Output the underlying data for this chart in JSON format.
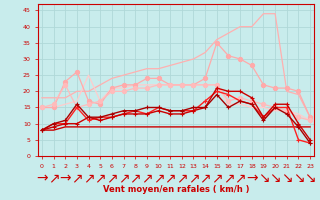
{
  "title": "",
  "xlabel": "Vent moyen/en rafales ( km/h )",
  "background_color": "#c8ecec",
  "grid_color": "#b0d8d8",
  "x": [
    0,
    1,
    2,
    3,
    4,
    5,
    6,
    7,
    8,
    9,
    10,
    11,
    12,
    13,
    14,
    15,
    16,
    17,
    18,
    19,
    20,
    21,
    22,
    23
  ],
  "series": [
    {
      "y": [
        18,
        18,
        18,
        20,
        20,
        22,
        24,
        25,
        26,
        27,
        27,
        28,
        29,
        30,
        32,
        36,
        38,
        40,
        40,
        44,
        44,
        20,
        19,
        12
      ],
      "color": "#ffb0b0",
      "marker": null,
      "lw": 0.9,
      "alpha": 1.0
    },
    {
      "y": [
        15,
        15,
        23,
        26,
        17,
        16,
        21,
        22,
        22,
        24,
        24,
        22,
        22,
        22,
        24,
        35,
        31,
        30,
        28,
        22,
        21,
        21,
        20,
        12
      ],
      "color": "#ffaaaa",
      "marker": "o",
      "lw": 0.9,
      "alpha": 1.0
    },
    {
      "y": [
        15,
        16,
        22,
        15,
        16,
        17,
        20,
        20,
        21,
        21,
        22,
        22,
        22,
        22,
        22,
        22,
        17,
        18,
        17,
        16,
        15,
        14,
        12,
        11
      ],
      "color": "#ffbbbb",
      "marker": "o",
      "lw": 0.9,
      "alpha": 1.0
    },
    {
      "y": [
        15,
        15,
        16,
        17,
        25,
        17,
        21,
        21,
        22,
        22,
        22,
        22,
        22,
        22,
        22,
        22,
        16,
        16,
        15,
        15,
        14,
        14,
        13,
        11
      ],
      "color": "#ffcccc",
      "marker": null,
      "lw": 0.9,
      "alpha": 1.0
    },
    {
      "y": [
        8,
        8,
        9,
        9,
        9,
        9,
        9,
        9,
        9,
        9,
        9,
        9,
        9,
        9,
        9,
        9,
        9,
        9,
        9,
        9,
        9,
        9,
        9,
        9
      ],
      "color": "#cc0000",
      "marker": null,
      "lw": 1.0,
      "alpha": 1.0
    },
    {
      "y": [
        8,
        10,
        10,
        15,
        11,
        12,
        12,
        13,
        14,
        13,
        15,
        14,
        14,
        14,
        17,
        20,
        19,
        17,
        16,
        12,
        15,
        15,
        5,
        4
      ],
      "color": "#ff2020",
      "marker": "+",
      "lw": 1.0,
      "alpha": 1.0
    },
    {
      "y": [
        8,
        9,
        10,
        10,
        12,
        11,
        12,
        13,
        13,
        13,
        14,
        13,
        13,
        14,
        15,
        21,
        20,
        20,
        18,
        12,
        16,
        16,
        10,
        5
      ],
      "color": "#cc0000",
      "marker": "+",
      "lw": 1.0,
      "alpha": 1.0
    },
    {
      "y": [
        8,
        10,
        11,
        16,
        12,
        12,
        13,
        14,
        14,
        15,
        15,
        14,
        14,
        15,
        15,
        19,
        15,
        17,
        16,
        11,
        15,
        13,
        9,
        4
      ],
      "color": "#aa0000",
      "marker": "+",
      "lw": 1.0,
      "alpha": 1.0
    }
  ],
  "ylim": [
    0,
    47
  ],
  "yticks": [
    0,
    5,
    10,
    15,
    20,
    25,
    30,
    35,
    40,
    45
  ],
  "xticks": [
    0,
    1,
    2,
    3,
    4,
    5,
    6,
    7,
    8,
    9,
    10,
    11,
    12,
    13,
    14,
    15,
    16,
    17,
    18,
    19,
    20,
    21,
    22,
    23
  ],
  "xlim": [
    -0.3,
    23.3
  ],
  "arrow_chars": [
    "→",
    "↗",
    "→",
    "↗",
    "↗",
    "↗",
    "↗",
    "↗",
    "↗",
    "↗",
    "↗",
    "↗",
    "↗",
    "↗",
    "↗",
    "↗",
    "↗",
    "↗",
    "→",
    "↘",
    "↘",
    "↘",
    "↘",
    "↘"
  ],
  "figsize": [
    3.2,
    2.0
  ],
  "dpi": 100
}
